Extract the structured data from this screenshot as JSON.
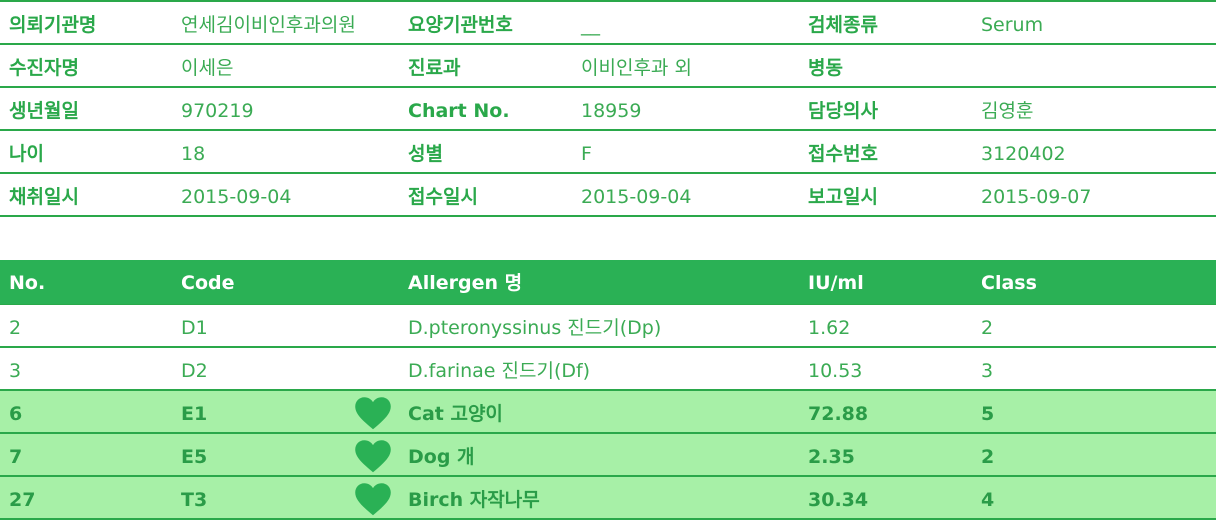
{
  "info": {
    "rows": [
      [
        {
          "label": "의뢰기관명",
          "value": "연세김이비인후과의원"
        },
        {
          "label": "요양기관번호",
          "value": "__"
        },
        {
          "label": "검체종류",
          "value": "Serum"
        }
      ],
      [
        {
          "label": "수진자명",
          "value": "이세은"
        },
        {
          "label": "진료과",
          "value": "이비인후과 외"
        },
        {
          "label": "병동",
          "value": ""
        }
      ],
      [
        {
          "label": "생년월일",
          "value": "970219"
        },
        {
          "label": "Chart No.",
          "value": "18959"
        },
        {
          "label": "담당의사",
          "value": "김영훈"
        }
      ],
      [
        {
          "label": "나이",
          "value": "18"
        },
        {
          "label": "성별",
          "value": "F"
        },
        {
          "label": "접수번호",
          "value": "3120402"
        }
      ],
      [
        {
          "label": "채취일시",
          "value": "2015-09-04"
        },
        {
          "label": "접수일시",
          "value": "2015-09-04"
        },
        {
          "label": "보고일시",
          "value": "2015-09-07"
        }
      ]
    ]
  },
  "results": {
    "headers": [
      "No.",
      "Code",
      "Allergen 명",
      "IU/ml",
      "Class"
    ],
    "rows": [
      {
        "no": "2",
        "code": "D1",
        "allergen": "D.pteronyssinus 진드기(Dp)",
        "iu": "1.62",
        "class": "2",
        "highlight": false
      },
      {
        "no": "3",
        "code": "D2",
        "allergen": "D.farinae 진드기(Df)",
        "iu": "10.53",
        "class": "3",
        "highlight": false
      },
      {
        "no": "6",
        "code": "E1",
        "allergen": "Cat 고양이",
        "iu": "72.88",
        "class": "5",
        "highlight": true
      },
      {
        "no": "7",
        "code": "E5",
        "allergen": "Dog 개",
        "iu": "2.35",
        "class": "2",
        "highlight": true
      },
      {
        "no": "27",
        "code": "T3",
        "allergen": "Birch 자작나무",
        "iu": "30.34",
        "class": "4",
        "highlight": true
      }
    ]
  },
  "colors": {
    "accent": "#2aa84a",
    "header_bg": "#2ab155",
    "highlight_bg": "#a7f0a7",
    "heart": "#2ab155"
  },
  "icons": {
    "highlight_marker": "heart-icon"
  }
}
